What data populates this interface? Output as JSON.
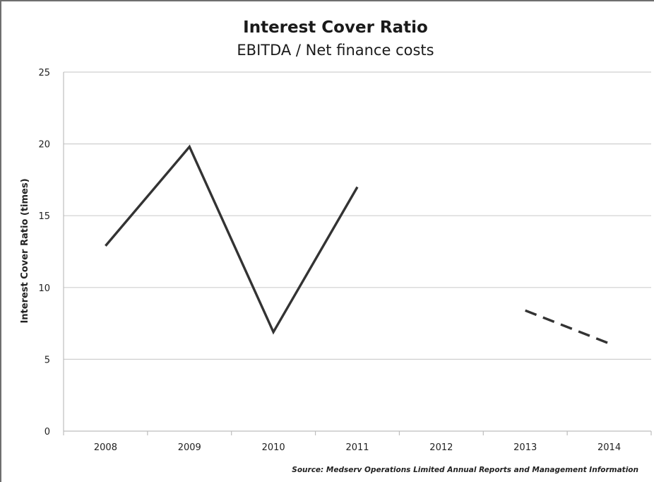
{
  "chart_data": {
    "type": "line",
    "title": "Interest Cover Ratio",
    "subtitle": "EBITDA / Net finance costs",
    "ylabel": "Interest Cover Ratio (times)",
    "xlabel": "",
    "categories": [
      "2008",
      "2009",
      "2010",
      "2011",
      "2012",
      "2013",
      "2014"
    ],
    "yticks": [
      "0",
      "5",
      "10",
      "15",
      "20",
      "25"
    ],
    "ylim": [
      0,
      25
    ],
    "grid": true,
    "legend": "none",
    "series": [
      {
        "style": "solid",
        "color": "#333333",
        "values": [
          12.9,
          19.8,
          6.9,
          17.0,
          null,
          null,
          null
        ]
      },
      {
        "style": "dashed",
        "color": "#333333",
        "values": [
          null,
          null,
          null,
          null,
          null,
          8.4,
          6.1
        ]
      }
    ],
    "source": "Source: Medserv Operations Limited Annual Reports and Management Information"
  }
}
